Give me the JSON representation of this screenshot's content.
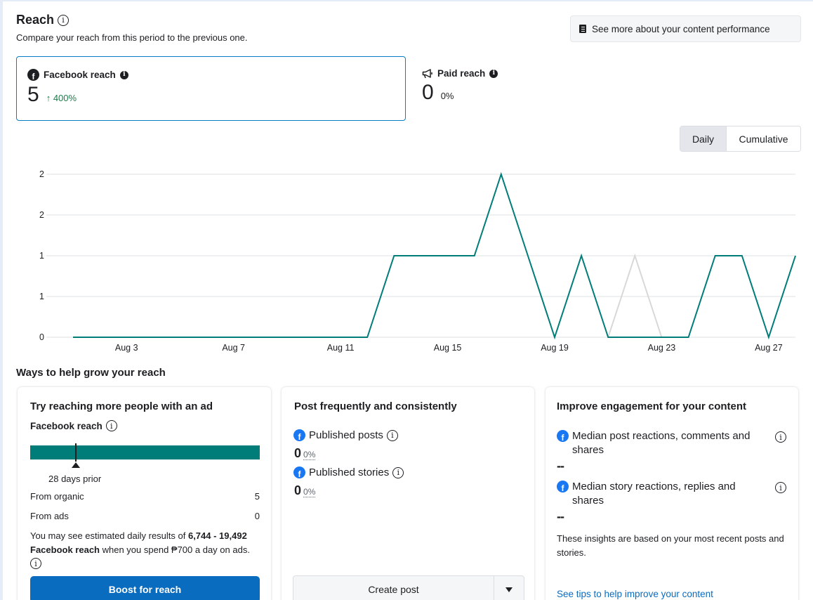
{
  "reach": {
    "title": "Reach",
    "subtitle": "Compare your reach from this period to the previous one.",
    "content_performance_label": "See more about your content performance"
  },
  "metrics": {
    "facebook": {
      "label": "Facebook reach",
      "value": "5",
      "change": "400%",
      "change_direction": "up",
      "icon": "facebook-icon"
    },
    "paid": {
      "label": "Paid reach",
      "value": "0",
      "change": "0%",
      "icon": "megaphone-icon"
    }
  },
  "toggle": {
    "daily": "Daily",
    "cumulative": "Cumulative",
    "selected": "Daily"
  },
  "colors": {
    "accent": "#0a7cc7",
    "series_current": "#007d78",
    "series_previous": "#d8d8d8",
    "positive": "#1e7b4a",
    "button_blue": "#0a6cbf"
  },
  "chart_data": {
    "type": "line",
    "x": [
      "Aug 1",
      "Aug 2",
      "Aug 3",
      "Aug 4",
      "Aug 5",
      "Aug 6",
      "Aug 7",
      "Aug 8",
      "Aug 9",
      "Aug 10",
      "Aug 11",
      "Aug 12",
      "Aug 13",
      "Aug 14",
      "Aug 15",
      "Aug 16",
      "Aug 17",
      "Aug 18",
      "Aug 19",
      "Aug 20",
      "Aug 21",
      "Aug 22",
      "Aug 23",
      "Aug 24",
      "Aug 25",
      "Aug 26",
      "Aug 27",
      "Aug 28"
    ],
    "x_tick_labels": [
      "Aug 3",
      "Aug 7",
      "Aug 11",
      "Aug 15",
      "Aug 19",
      "Aug 23",
      "Aug 27"
    ],
    "y_tick_labels": [
      "0",
      "1",
      "1",
      "2",
      "2"
    ],
    "y_tick_values": [
      0,
      0.5,
      1,
      1.5,
      2
    ],
    "ylim": [
      0,
      2
    ],
    "grid": true,
    "series": [
      {
        "color": "#007d78",
        "values": [
          0,
          0,
          0,
          0,
          0,
          0,
          0,
          0,
          0,
          0,
          0,
          0,
          1,
          1,
          1,
          1,
          2,
          1,
          0,
          1,
          0,
          0,
          0,
          0,
          1,
          1,
          0,
          1
        ]
      },
      {
        "color": "#d8d8d8",
        "values": [
          null,
          null,
          null,
          null,
          null,
          null,
          null,
          null,
          null,
          null,
          null,
          null,
          null,
          null,
          null,
          null,
          null,
          null,
          null,
          null,
          0,
          1,
          0,
          null,
          null,
          null,
          null,
          null
        ]
      }
    ]
  },
  "grow": {
    "title": "Ways to help grow your reach",
    "ad_card": {
      "title": "Try reaching more people with an ad",
      "subtitle": "Facebook reach",
      "bar_caption": "28 days prior",
      "organic_label": "From organic",
      "organic_value": "5",
      "ads_label": "From ads",
      "ads_value": "0",
      "estimate_prefix": "You may see estimated daily results of ",
      "estimate_range": "6,744 - 19,492",
      "estimate_metric": "Facebook reach",
      "estimate_suffix": " when you spend ₱700 a day on ads.",
      "boost_label": "Boost for reach"
    },
    "post_card": {
      "title": "Post frequently and consistently",
      "published_posts_label": "Published posts",
      "published_posts_value": "0",
      "published_posts_pct": "0%",
      "published_stories_label": "Published stories",
      "published_stories_value": "0",
      "published_stories_pct": "0%",
      "create_label": "Create post"
    },
    "engagement_card": {
      "title": "Improve engagement for your content",
      "post_reactions_label": "Median post reactions, comments and shares",
      "post_reactions_value": "--",
      "story_reactions_label": "Median story reactions, replies and shares",
      "story_reactions_value": "--",
      "note": "These insights are based on your most recent posts and stories.",
      "tips_link": "See tips to help improve your content"
    }
  }
}
